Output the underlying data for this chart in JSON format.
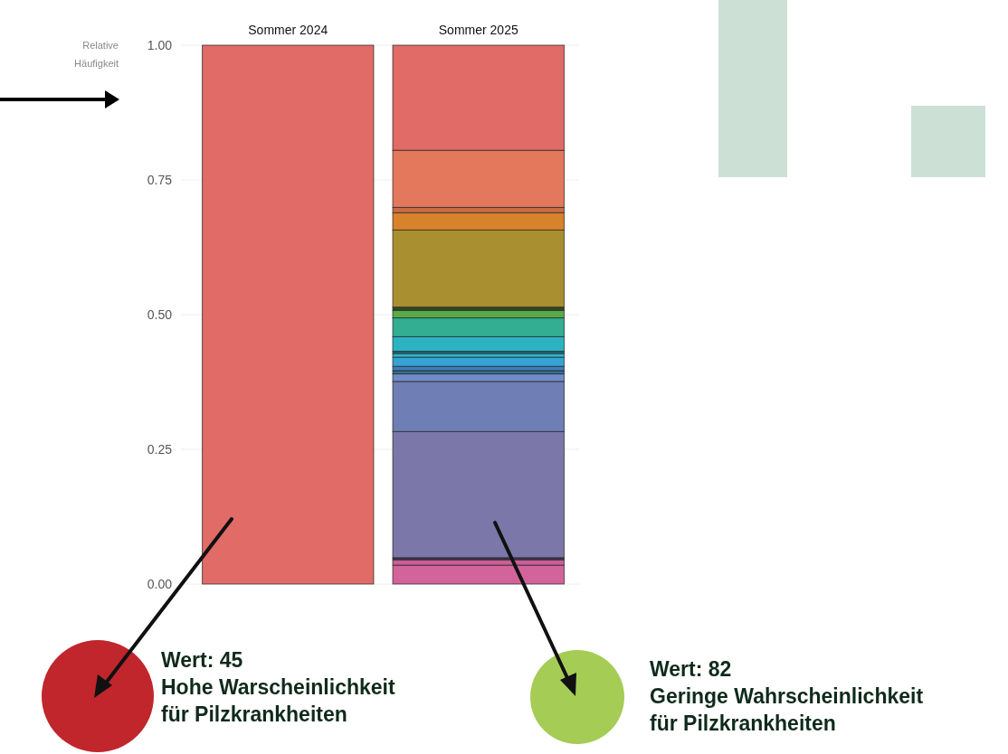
{
  "chart_data": {
    "type": "bar",
    "stacked": true,
    "categories": [
      "Sommer 2024",
      "Sommer 2025"
    ],
    "ylabel": "Relative Häufigkeit",
    "ylim": [
      0,
      1
    ],
    "yticks": [
      {
        "value": 0,
        "label": "0.00"
      },
      {
        "value": 0.25,
        "label": "0.25"
      },
      {
        "value": 0.5,
        "label": "0.50"
      },
      {
        "value": 0.75,
        "label": "0.75"
      },
      {
        "value": 1,
        "label": "1.00"
      }
    ],
    "grid": "y",
    "series": [
      {
        "color": "#d3649b",
        "values": [
          null,
          0.035
        ]
      },
      {
        "color": "#c95f95",
        "values": [
          null,
          0.01
        ]
      },
      {
        "color": "#4a3558",
        "values": [
          null,
          0.004
        ]
      },
      {
        "color": "#7c77a9",
        "values": [
          null,
          0.234
        ]
      },
      {
        "color": "#6f7eb4",
        "values": [
          null,
          0.093
        ]
      },
      {
        "color": "#6f8cc6",
        "values": [
          null,
          0.014
        ]
      },
      {
        "color": "#3c6a98",
        "values": [
          null,
          0.006
        ]
      },
      {
        "color": "#3d7fb5",
        "values": [
          null,
          0.008
        ]
      },
      {
        "color": "#35a3d6",
        "values": [
          null,
          0.017
        ]
      },
      {
        "color": "#2fb3c9",
        "values": [
          null,
          0.007
        ]
      },
      {
        "color": "#246c7c",
        "values": [
          null,
          0.004
        ]
      },
      {
        "color": "#2cb3c1",
        "values": [
          null,
          0.027
        ]
      },
      {
        "color": "#33ae93",
        "values": [
          null,
          0.035
        ]
      },
      {
        "color": "#5aab48",
        "values": [
          null,
          0.014
        ]
      },
      {
        "color": "#2f4a25",
        "values": [
          null,
          0.006
        ]
      },
      {
        "color": "#a98f30",
        "values": [
          null,
          0.143
        ]
      },
      {
        "color": "#d8822c",
        "values": [
          null,
          0.032
        ]
      },
      {
        "color": "#c86d45",
        "values": [
          null,
          0.01
        ]
      },
      {
        "color": "#e4785c",
        "values": [
          null,
          0.106
        ]
      },
      {
        "color": "#e06b67",
        "values": [
          1.0,
          0.195
        ]
      }
    ],
    "annotations": [
      "Wert: 45\nHohe Warscheinlichkeit\nfür Pilzkrankheiten",
      "Wert: 82\nGeringe Wahrscheinlichkeit\nfür Pilzkrankheiten"
    ]
  }
}
